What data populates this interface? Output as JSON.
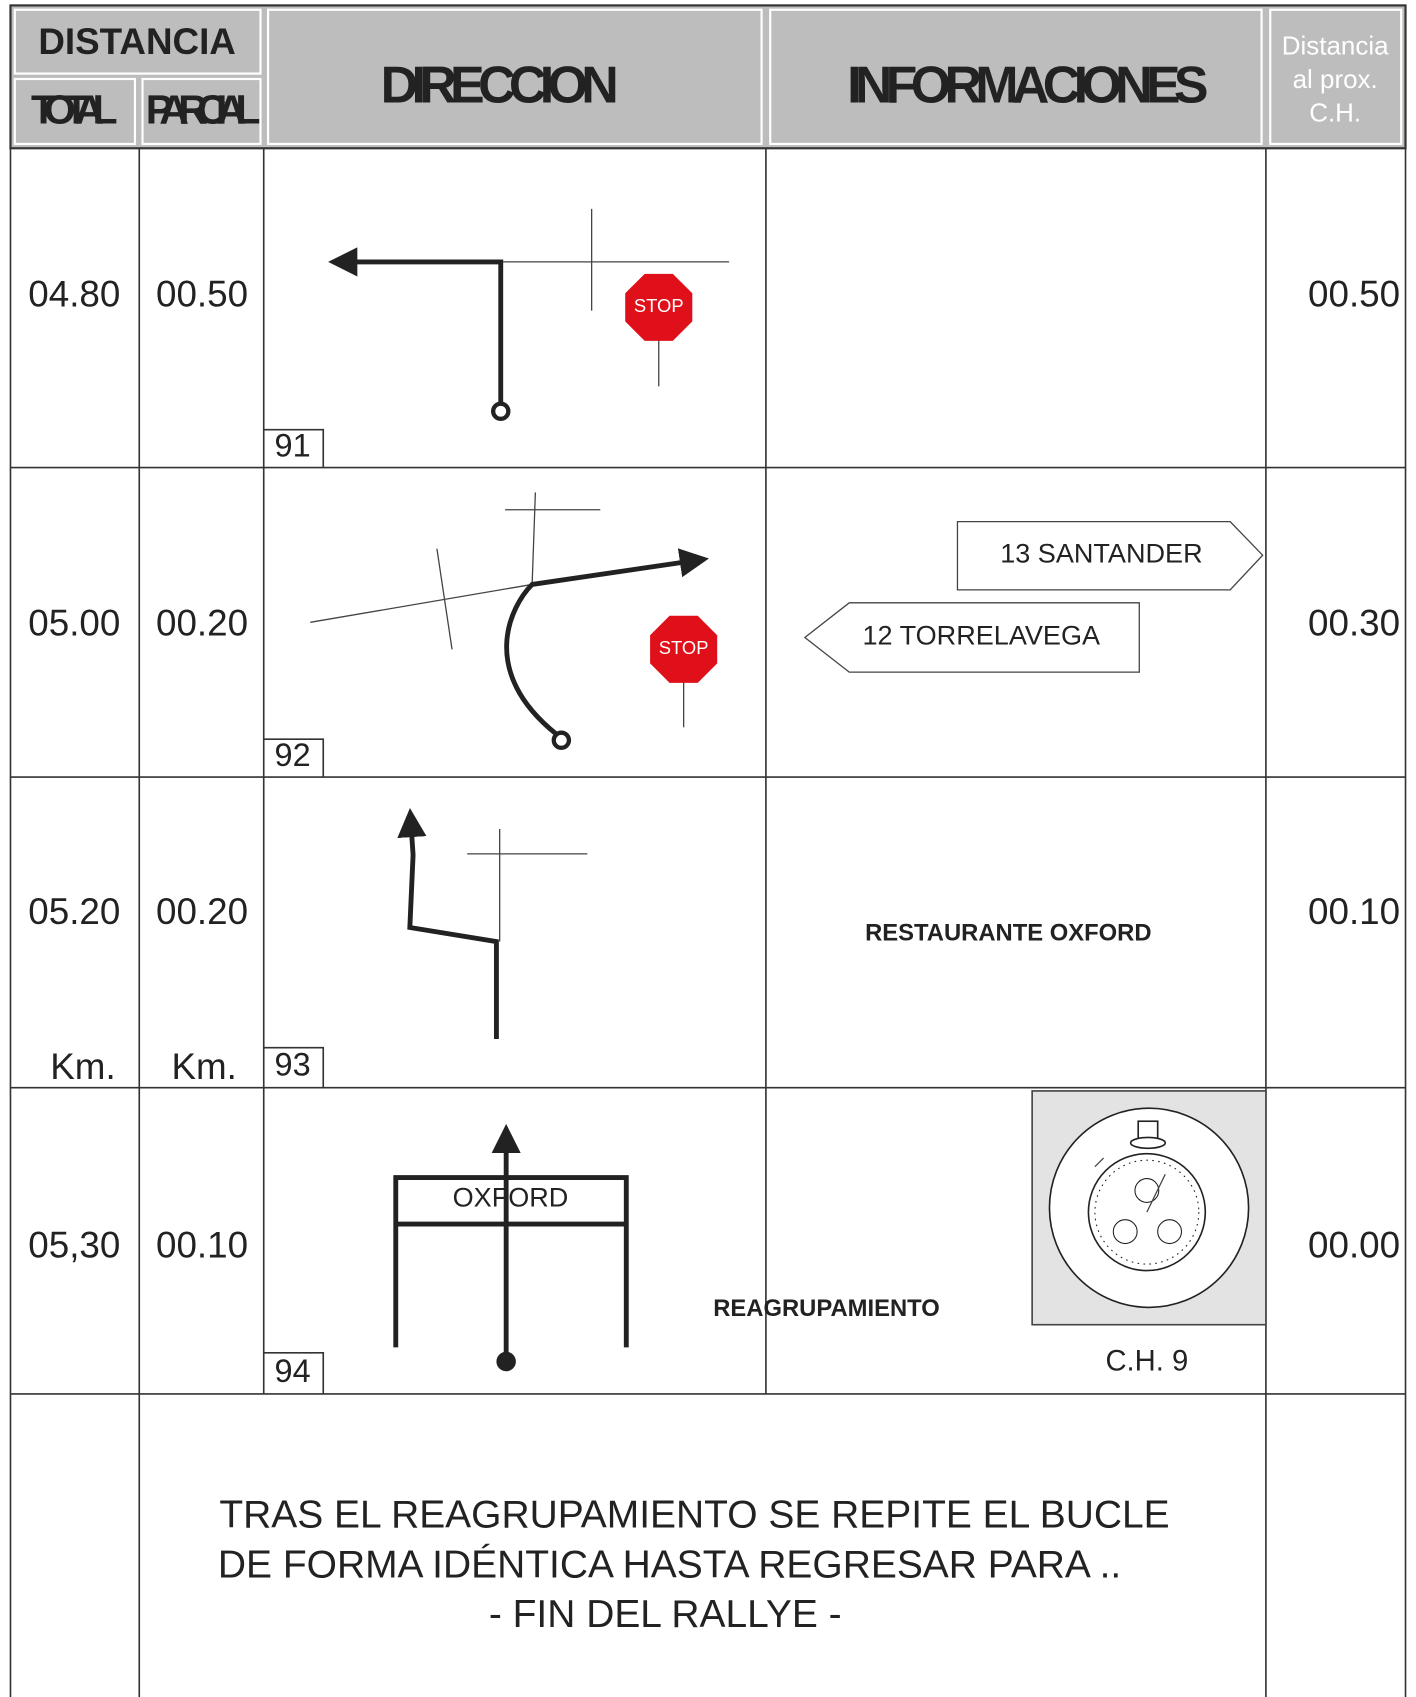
{
  "header": {
    "distancia": "DISTANCIA",
    "total": "TOTAL",
    "parcial": "PARCIAL",
    "direccion": "DIRECCION",
    "informaciones": "INFORMACIONES",
    "next": [
      "Distancia",
      "al prox.",
      "C.H."
    ]
  },
  "rows": [
    {
      "total": "04.80",
      "parcial": "00.50",
      "number": "91",
      "stop": "STOP",
      "next": "00.50"
    },
    {
      "total": "05.00",
      "parcial": "00.20",
      "number": "92",
      "stop": "STOP",
      "signs": [
        "13 SANTANDER",
        "12 TORRELAVEGA"
      ],
      "next": "00.30"
    },
    {
      "total": "05.20",
      "parcial": "00.20",
      "number": "93",
      "info": "RESTAURANTE OXFORD",
      "units": [
        "Km.",
        "Km."
      ],
      "next": "00.10"
    },
    {
      "total": "05,30",
      "parcial": "00.10",
      "number": "94",
      "sign": "OXFORD",
      "info": "REAGRUPAMIENTO",
      "control": "C.H. 9",
      "next": "00.00"
    }
  ],
  "footer": [
    "TRAS EL REAGRUPAMIENTO SE REPITE EL BUCLE",
    "DE FORMA IDÉNTICA HASTA REGRESAR PARA ..",
    "- FIN DEL RALLYE -"
  ]
}
